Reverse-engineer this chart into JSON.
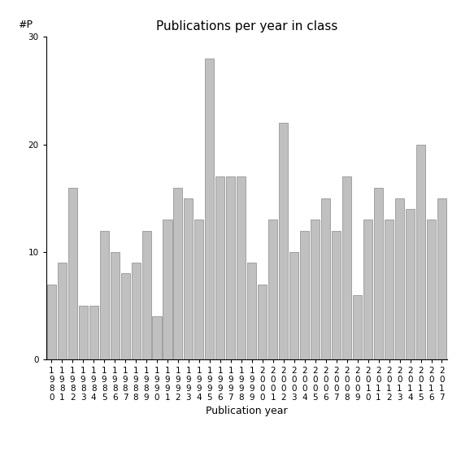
{
  "title": "Publications per year in class",
  "xlabel": "Publication year",
  "ylabel": "#P",
  "years": [
    "1980",
    "1981",
    "1982",
    "1983",
    "1984",
    "1985",
    "1986",
    "1987",
    "1988",
    "1989",
    "1990",
    "1991",
    "1992",
    "1993",
    "1994",
    "1995",
    "1996",
    "1997",
    "1998",
    "1999",
    "2000",
    "2001",
    "2002",
    "2003",
    "2004",
    "2005",
    "2006",
    "2007",
    "2008",
    "2009",
    "2010",
    "2011",
    "2012",
    "2013",
    "2014",
    "2015",
    "2016",
    "2017"
  ],
  "values": [
    7,
    9,
    16,
    5,
    5,
    12,
    10,
    8,
    9,
    12,
    4,
    13,
    16,
    15,
    13,
    28,
    17,
    17,
    17,
    9,
    7,
    13,
    22,
    10,
    12,
    13,
    15,
    12,
    17,
    6,
    13,
    16,
    13,
    15,
    14,
    20,
    13,
    15
  ],
  "bar_color": "#c0c0c0",
  "bar_edge_color": "#888888",
  "ylim": [
    0,
    30
  ],
  "yticks": [
    0,
    10,
    20,
    30
  ],
  "background_color": "#ffffff",
  "title_fontsize": 11,
  "label_fontsize": 9,
  "tick_fontsize": 7.5
}
